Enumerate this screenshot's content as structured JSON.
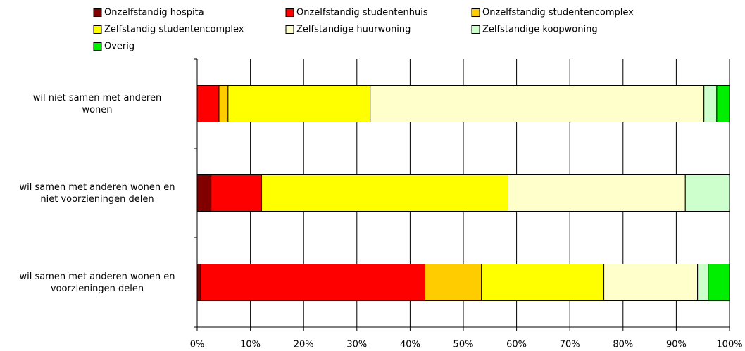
{
  "chart_data": {
    "type": "stacked-barh",
    "categories": [
      "wil niet samen met anderen\nwonen",
      "wil samen met anderen wonen en\nniet voorzieningen delen",
      "wil samen met anderen wonen en\nvoorzieningen delen"
    ],
    "series": [
      {
        "name": "Onzelfstandig hospita",
        "color": "#800000",
        "values": [
          0,
          2.6,
          0.7
        ]
      },
      {
        "name": "Onzelfstandig studentenhuis",
        "color": "#ff0000",
        "values": [
          4.1,
          9.5,
          42.1
        ]
      },
      {
        "name": "Onzelfstandig studentencomplex",
        "color": "#ffcc00",
        "values": [
          1.7,
          0,
          10.6
        ]
      },
      {
        "name": "Zelfstandig studentencomplex",
        "color": "#ffff00",
        "values": [
          26.7,
          46.3,
          23.0
        ]
      },
      {
        "name": "Zelfstandige huurwoning",
        "color": "#ffffcc",
        "values": [
          62.7,
          33.3,
          17.6
        ]
      },
      {
        "name": "Zelfstandige koopwoning",
        "color": "#ccffcc",
        "values": [
          2.4,
          8.3,
          2.0
        ]
      },
      {
        "name": "Overig",
        "color": "#00ee00",
        "values": [
          2.4,
          0,
          4.0
        ]
      }
    ],
    "xlim": [
      0,
      100
    ],
    "xticks": [
      {
        "value": 0,
        "label": "0%"
      },
      {
        "value": 10,
        "label": "10%"
      },
      {
        "value": 20,
        "label": "20%"
      },
      {
        "value": 30,
        "label": "30%"
      },
      {
        "value": 40,
        "label": "40%"
      },
      {
        "value": 50,
        "label": "50%"
      },
      {
        "value": 60,
        "label": "60%"
      },
      {
        "value": 70,
        "label": "70%"
      },
      {
        "value": 80,
        "label": "80%"
      },
      {
        "value": 90,
        "label": "90%"
      },
      {
        "value": 100,
        "label": "100%"
      }
    ],
    "grid": true,
    "legend": "top"
  }
}
